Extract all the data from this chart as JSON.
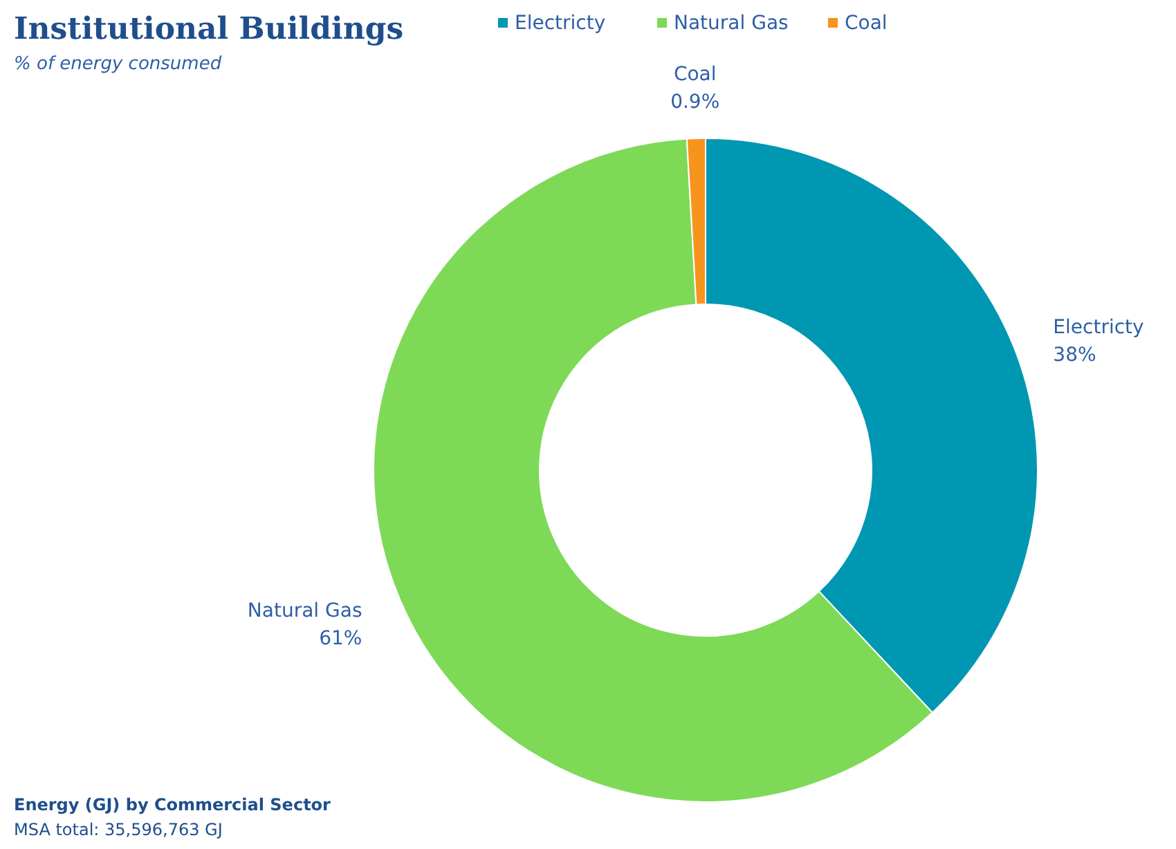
{
  "chart_data": {
    "type": "donut",
    "title": "Institutional Buildings",
    "subtitle": "% of energy consumed",
    "categories": [
      "Electricty",
      "Natural Gas",
      "Coal"
    ],
    "values": [
      38,
      61,
      0.9
    ],
    "colors": [
      "#0097b2",
      "#7ed957",
      "#f7941d"
    ],
    "value_labels": [
      "38%",
      "61%",
      "0.9%"
    ],
    "legend": "top",
    "annotations": [
      "Energy (GJ) by Commercial Sector",
      "MSA total: 35,596,763 GJ"
    ]
  }
}
